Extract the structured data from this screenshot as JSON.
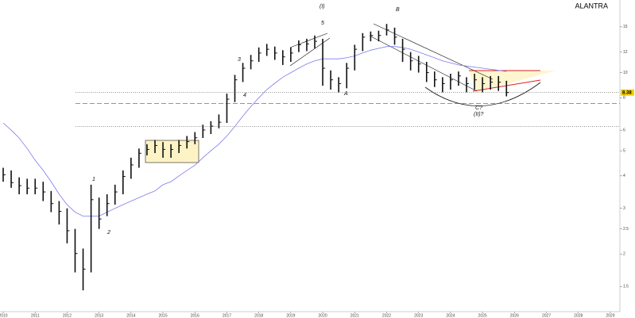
{
  "chart_data": {
    "type": "ohlc",
    "title": "ALANTRA",
    "log_scale": true,
    "xlim": [
      2009.9,
      2029.3
    ],
    "xticks": [
      2010,
      2011,
      2012,
      2013,
      2014,
      2015,
      2016,
      2017,
      2018,
      2019,
      2020,
      2021,
      2022,
      2023,
      2024,
      2025,
      2026,
      2027,
      2028,
      2029
    ],
    "ylim": [
      1.2,
      18
    ],
    "yticks": [
      1.5,
      2,
      2.5,
      3,
      4,
      5,
      6,
      8,
      10,
      12,
      15
    ],
    "x": [
      2010,
      2010.25,
      2010.5,
      2010.75,
      2011,
      2011.25,
      2011.5,
      2011.75,
      2012,
      2012.25,
      2012.5,
      2012.75,
      2013,
      2013.25,
      2013.5,
      2013.75,
      2014,
      2014.25,
      2014.5,
      2014.75,
      2015,
      2015.25,
      2015.5,
      2015.75,
      2016,
      2016.25,
      2016.5,
      2016.75,
      2017,
      2017.25,
      2017.5,
      2017.75,
      2018,
      2018.25,
      2018.5,
      2018.75,
      2019,
      2019.25,
      2019.5,
      2019.75,
      2020,
      2020.25,
      2020.5,
      2020.75,
      2021,
      2021.25,
      2021.5,
      2021.75,
      2022,
      2022.25,
      2022.5,
      2022.75,
      2023,
      2023.25,
      2023.5,
      2023.75,
      2024,
      2024.25,
      2024.5,
      2024.75,
      2025,
      2025.25,
      2025.5,
      2025.75
    ],
    "ohlc": {
      "color": "#111111",
      "high": [
        4.3,
        4.2,
        3.95,
        3.9,
        3.9,
        3.8,
        3.5,
        3.2,
        3.0,
        2.5,
        2.1,
        3.7,
        3.3,
        3.4,
        3.7,
        4.2,
        4.7,
        5.1,
        5.3,
        5.5,
        5.4,
        5.3,
        5.5,
        5.7,
        5.9,
        6.3,
        6.5,
        6.9,
        8.3,
        9.8,
        10.9,
        11.7,
        12.5,
        12.9,
        12.6,
        12.2,
        12.5,
        13.3,
        13.5,
        13.9,
        13.5,
        10.2,
        9.6,
        10.9,
        12.8,
        14.2,
        14.4,
        14.5,
        15.4,
        14.9,
        13.5,
        12.0,
        11.6,
        11.0,
        10.1,
        9.6,
        9.9,
        10.1,
        9.6,
        9.9,
        9.6,
        9.7,
        9.7,
        9.3
      ],
      "low": [
        3.8,
        3.6,
        3.4,
        3.4,
        3.4,
        3.2,
        2.9,
        2.6,
        2.2,
        1.7,
        1.45,
        1.7,
        2.5,
        2.8,
        3.1,
        3.4,
        3.9,
        4.3,
        4.8,
        4.9,
        4.7,
        4.7,
        4.9,
        5.1,
        5.3,
        5.6,
        5.8,
        6.1,
        6.4,
        7.7,
        9.2,
        10.3,
        11.0,
        11.6,
        11.2,
        10.7,
        11.0,
        12.0,
        12.1,
        12.4,
        8.9,
        8.6,
        8.4,
        8.7,
        10.2,
        12.1,
        13.2,
        13.2,
        13.9,
        12.8,
        11.0,
        10.2,
        10.0,
        9.2,
        8.8,
        8.4,
        8.6,
        8.9,
        8.4,
        8.6,
        8.4,
        8.6,
        8.5,
        8.1
      ],
      "close": [
        4.04,
        3.77,
        3.67,
        3.59,
        3.59,
        3.47,
        3.13,
        2.92,
        2.46,
        2.01,
        1.75,
        3.24,
        2.73,
        3.13,
        3.47,
        3.98,
        4.41,
        4.89,
        5.06,
        5.24,
        5.06,
        5.06,
        5.24,
        5.42,
        5.61,
        6.01,
        6.22,
        6.44,
        7.9,
        9.38,
        10.4,
        11.1,
        11.9,
        12.3,
        11.9,
        11.5,
        11.9,
        12.8,
        12.9,
        13.2,
        10.4,
        9.38,
        9.07,
        10.4,
        12.3,
        13.7,
        13.9,
        13.9,
        14.6,
        13.7,
        12.3,
        11.1,
        10.8,
        10.0,
        9.38,
        9.07,
        9.38,
        9.71,
        9.07,
        9.38,
        9.07,
        9.19,
        9.19,
        8.38
      ]
    },
    "overlay": {
      "color": "#7b7bf0",
      "values": [
        6.4,
        6.0,
        5.6,
        5.1,
        4.6,
        4.2,
        3.8,
        3.4,
        3.1,
        2.9,
        2.8,
        2.8,
        2.8,
        2.9,
        3.0,
        3.1,
        3.2,
        3.3,
        3.4,
        3.5,
        3.7,
        3.8,
        4.0,
        4.2,
        4.4,
        4.7,
        5.0,
        5.3,
        5.7,
        6.2,
        6.8,
        7.4,
        8.0,
        8.6,
        9.1,
        9.6,
        10.0,
        10.4,
        10.8,
        11.1,
        11.3,
        11.3,
        11.3,
        11.4,
        11.6,
        11.9,
        12.2,
        12.4,
        12.6,
        12.6,
        12.5,
        12.3,
        12.0,
        11.7,
        11.4,
        11.1,
        10.9,
        10.7,
        10.6,
        10.5,
        10.4,
        10.3,
        10.2,
        10.1
      ]
    },
    "current_price": 8.38,
    "levels": [
      7.6,
      6.2
    ],
    "annotations": [
      "(I)",
      "5",
      "3",
      "4",
      "A",
      "B",
      "C?",
      "(II)?",
      "1",
      "2"
    ]
  }
}
